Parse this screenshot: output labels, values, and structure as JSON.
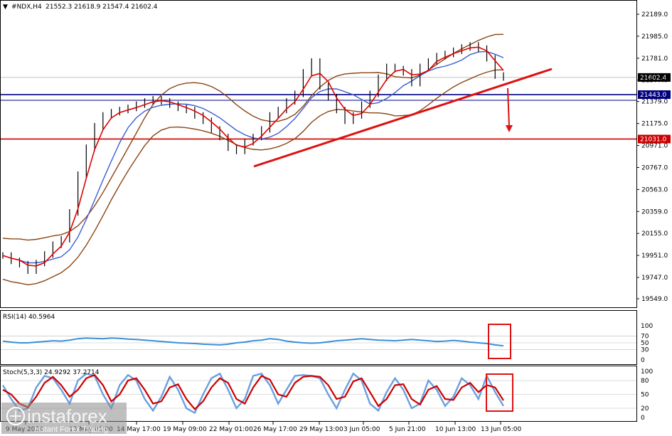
{
  "header": {
    "symbol": "#NDX,H4",
    "ohlc": "21552.3 21618.9 21547.4 21602.4"
  },
  "rsi_label": "RSI(14) 40.5964",
  "stoch_label": "Stoch(5,3,3) 24.9292 37.2714",
  "watermark": {
    "brand": "instaforex",
    "tagline": "Instant Forex Trading"
  },
  "colors": {
    "price_line": "#000000",
    "bollinger": "#8b4513",
    "ma_red": "#e00000",
    "ma_blue": "#3a5fcd",
    "support_line": "#000080",
    "resistance_line": "#cc0000",
    "trendline": "#dd1111",
    "rsi_line": "#3d8fd6",
    "stoch_main": "#6a9fe0",
    "stoch_signal": "#cc0000"
  },
  "chart_data": [
    {
      "type": "line",
      "name": "price",
      "ylim": [
        19549,
        22189
      ],
      "price_ticks": [
        "22189.0",
        "21985.0",
        "21781.0",
        "21577.0",
        "21379.0",
        "21175.0",
        "20971.0",
        "20767.0",
        "20563.0",
        "20359.0",
        "20155.0",
        "19951.0",
        "19747.0",
        "19549.0"
      ],
      "time_labels": [
        "9 May 2024",
        "13 May 01:00",
        "14 May 17:00",
        "19 May 09:00",
        "22 May 01:00",
        "26 May 17:00",
        "29 May 13:00",
        "3 Jun 05:00",
        "5 Jun 21:00",
        "10 Jun 13:00",
        "13 Jun 05:00"
      ],
      "close": [
        19950,
        19900,
        19870,
        19810,
        19880,
        19960,
        20050,
        20100,
        20350,
        20700,
        20950,
        21150,
        21250,
        21280,
        21300,
        21320,
        21350,
        21380,
        21400,
        21380,
        21350,
        21320,
        21300,
        21250,
        21200,
        21120,
        21050,
        20950,
        20920,
        21000,
        21050,
        21120,
        21250,
        21300,
        21380,
        21450,
        21650,
        21750,
        21520,
        21420,
        21300,
        21200,
        21250,
        21350,
        21450,
        21600,
        21700,
        21680,
        21650,
        21550,
        21700,
        21750,
        21800,
        21820,
        21850,
        21880,
        21900,
        21870,
        21780,
        21620,
        21602
      ],
      "levels": [
        {
          "label": "21602.4",
          "value": 21602.4
        },
        {
          "label": "21443.0",
          "value": 21443.0
        },
        {
          "label": "21031.0",
          "value": 21031.0
        }
      ]
    },
    {
      "type": "line",
      "name": "RSI(14)",
      "ylim": [
        0,
        100
      ],
      "ticks": [
        "100",
        "70",
        "50",
        "30",
        "0"
      ],
      "values": [
        55,
        52,
        50,
        50,
        52,
        54,
        56,
        55,
        58,
        62,
        64,
        63,
        62,
        64,
        63,
        61,
        60,
        58,
        56,
        54,
        52,
        50,
        49,
        48,
        46,
        45,
        44,
        46,
        50,
        52,
        56,
        58,
        62,
        60,
        55,
        52,
        50,
        49,
        50,
        53,
        56,
        58,
        60,
        62,
        60,
        58,
        57,
        56,
        58,
        60,
        58,
        56,
        54,
        55,
        57,
        55,
        52,
        50,
        48,
        44,
        41
      ]
    },
    {
      "type": "line",
      "name": "Stoch(5,3,3)",
      "ylim": [
        0,
        100
      ],
      "ticks": [
        "100",
        "80",
        "50",
        "20",
        "0"
      ],
      "main": [
        70,
        40,
        15,
        20,
        65,
        90,
        85,
        60,
        30,
        80,
        95,
        90,
        50,
        20,
        70,
        92,
        80,
        40,
        15,
        45,
        88,
        60,
        20,
        10,
        50,
        85,
        95,
        60,
        20,
        40,
        90,
        95,
        70,
        30,
        60,
        90,
        92,
        90,
        85,
        50,
        20,
        60,
        95,
        80,
        30,
        15,
        55,
        85,
        60,
        20,
        30,
        80,
        60,
        25,
        45,
        85,
        70,
        40,
        90,
        55,
        25
      ],
      "signal": [
        60,
        50,
        30,
        22,
        45,
        75,
        88,
        70,
        45,
        60,
        85,
        92,
        70,
        35,
        50,
        80,
        85,
        60,
        30,
        35,
        65,
        72,
        40,
        18,
        35,
        65,
        85,
        75,
        40,
        30,
        65,
        90,
        82,
        50,
        45,
        75,
        88,
        90,
        88,
        70,
        40,
        45,
        78,
        85,
        55,
        25,
        40,
        70,
        72,
        40,
        28,
        60,
        68,
        40,
        38,
        65,
        75,
        55,
        70,
        65,
        37
      ]
    }
  ]
}
